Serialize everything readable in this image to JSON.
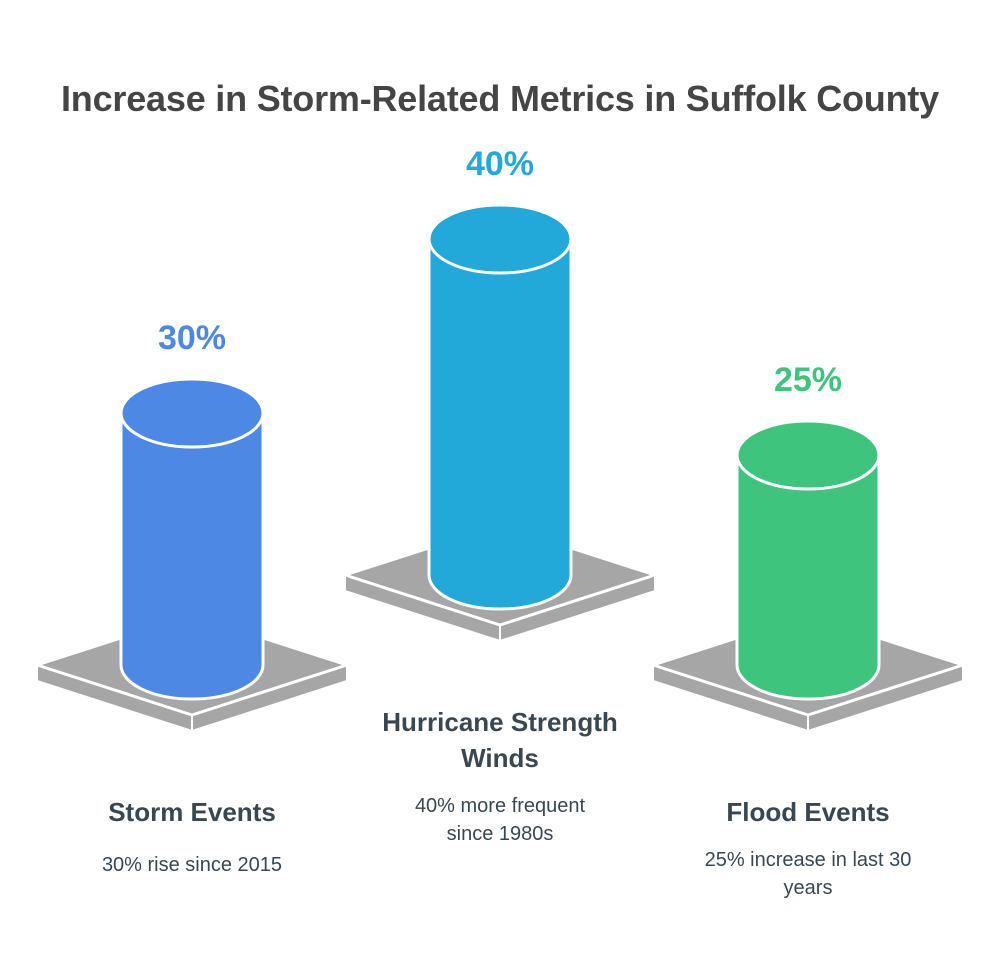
{
  "title": "Increase in Storm-Related Metrics in Suffolk County",
  "chart_data": {
    "type": "bar",
    "title": "Increase in Storm-Related Metrics in Suffolk County",
    "categories": [
      "Storm Events",
      "Hurricane Strength Winds",
      "Flood Events"
    ],
    "values": [
      30,
      40,
      25
    ],
    "unit": "%",
    "value_labels": [
      "30%",
      "40%",
      "25%"
    ],
    "descriptions": [
      "30% rise since 2015",
      "40% more frequent since 1980s",
      "25% increase in last 30 years"
    ],
    "colors": [
      "#4d88e4",
      "#22a9da",
      "#3fc47e"
    ],
    "pedestal_color": "#a6a6a6",
    "grid": false,
    "legend": "none"
  },
  "items": [
    {
      "name": "Storm Events",
      "value": "30%",
      "desc": "30% rise since 2015"
    },
    {
      "name": "Hurricane Strength Winds",
      "value": "40%",
      "desc": "40% more frequent since 1980s"
    },
    {
      "name": "Flood Events",
      "value": "25%",
      "desc": "25% increase in last 30 years"
    }
  ]
}
